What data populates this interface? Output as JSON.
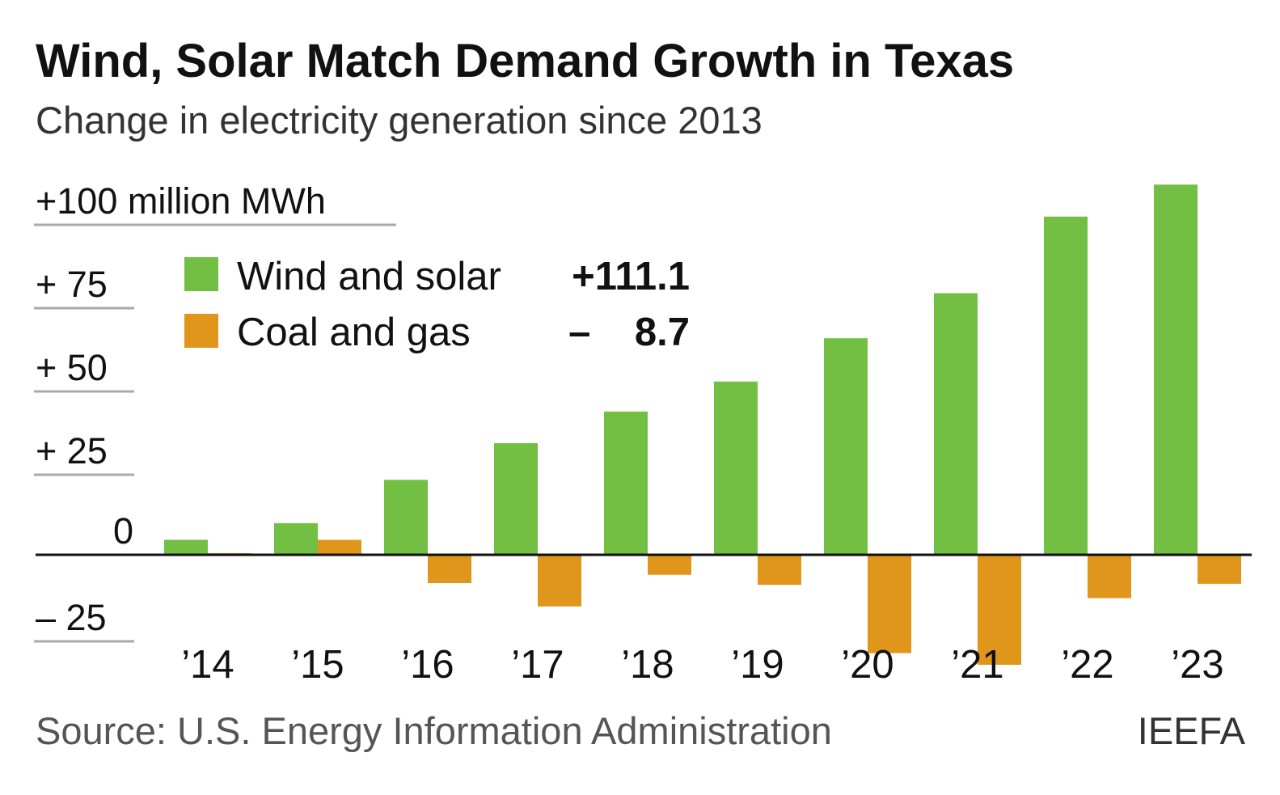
{
  "colors": {
    "wind_solar": "#72bf44",
    "coal_gas": "#e0961a",
    "gridline": "#aaaaaa",
    "axis": "#111111"
  },
  "source": "Source: U.S. Energy Information Administration",
  "brand": "IEEFA",
  "chart_data": {
    "type": "bar",
    "title": "Wind, Solar Match Demand Growth in Texas",
    "subtitle": "Change in electricity generation since 2013",
    "categories": [
      "’14",
      "’15",
      "’16",
      "’17",
      "’18",
      "’19",
      "’20",
      "’21",
      "’22",
      "’23"
    ],
    "series": [
      {
        "name": "Wind and solar",
        "total_label": "+111.1",
        "values": [
          4.5,
          9.5,
          22.5,
          33.5,
          43.0,
          52.0,
          65.0,
          78.5,
          101.5,
          111.1
        ]
      },
      {
        "name": "Coal and gas",
        "total_label": "–    8.7",
        "values": [
          0.5,
          4.5,
          -8.5,
          -15.5,
          -6.0,
          -9.0,
          -29.5,
          -33.0,
          -13.0,
          -8.7
        ]
      }
    ],
    "y_ticks": [
      {
        "value": 100,
        "label": "+100 million MWh"
      },
      {
        "value": 75,
        "label": "+  75"
      },
      {
        "value": 50,
        "label": "+  50"
      },
      {
        "value": 25,
        "label": "+  25"
      },
      {
        "value": 0,
        "label": "0"
      },
      {
        "value": -25,
        "label": "–  25"
      }
    ],
    "ylim": [
      -25,
      111.1
    ],
    "grid": true,
    "legend_position": "top-left"
  }
}
